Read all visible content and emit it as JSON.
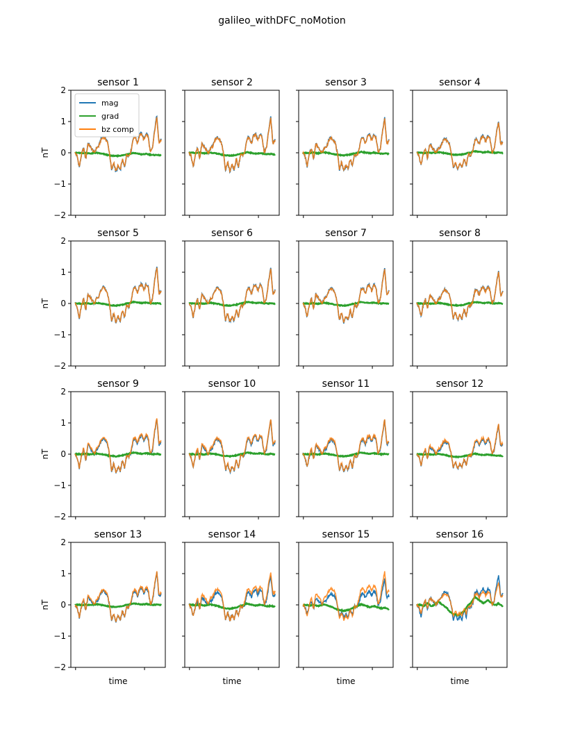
{
  "figure": {
    "title": "galileo_withDFC_noMotion"
  },
  "chart_data": {
    "type": "line",
    "layout": "4x4 grid of subplots, shared axes",
    "ylabel": "nT",
    "xlabel": "time",
    "ylim": [
      -2,
      2
    ],
    "yticks": [
      -2,
      -1,
      0,
      1,
      2
    ],
    "xtick_count": 2,
    "x_tick_labels_shown": false,
    "legend": {
      "placement": "upper-left of sensor 1",
      "entries": [
        "mag",
        "grad",
        "bz comp"
      ]
    },
    "colors": {
      "mag": "#1f77b4",
      "grad": "#2ca02c",
      "bz comp": "#ff7f0e"
    },
    "x": [
      0,
      0.025,
      0.05,
      0.075,
      0.1,
      0.125,
      0.15,
      0.175,
      0.2,
      0.225,
      0.25,
      0.275,
      0.3,
      0.325,
      0.35,
      0.375,
      0.4,
      0.425,
      0.45,
      0.475,
      0.5,
      0.525,
      0.55,
      0.575,
      0.6,
      0.625,
      0.65,
      0.675,
      0.7,
      0.725,
      0.75,
      0.775,
      0.8,
      0.825,
      0.85,
      0.875,
      0.9,
      0.925,
      0.95,
      0.975,
      1.0
    ],
    "base_signal": [
      0.0,
      -0.1,
      -0.45,
      -0.05,
      0.15,
      -0.2,
      0.3,
      0.2,
      0.1,
      0.0,
      0.15,
      0.2,
      0.4,
      0.5,
      0.45,
      0.35,
      0.0,
      -0.55,
      -0.3,
      -0.6,
      -0.4,
      -0.55,
      -0.2,
      -0.45,
      -0.05,
      -0.1,
      0.05,
      0.45,
      0.5,
      0.3,
      0.55,
      0.6,
      0.4,
      0.6,
      0.5,
      0.0,
      0.15,
      0.7,
      1.15,
      0.3,
      0.4
    ],
    "grad_base": [
      0.0,
      0.0,
      0.0,
      -0.01,
      0.0,
      0.01,
      0.0,
      -0.01,
      0.0,
      0.01,
      0.02,
      0.01,
      0.0,
      -0.01,
      -0.02,
      -0.04,
      -0.05,
      -0.06,
      -0.06,
      -0.07,
      -0.06,
      -0.05,
      -0.04,
      -0.02,
      0.0,
      0.01,
      0.03,
      0.05,
      0.04,
      0.03,
      0.02,
      0.01,
      0.02,
      0.03,
      0.02,
      0.01,
      0.0,
      0.0,
      0.01,
      0.0,
      -0.01
    ],
    "sensors": [
      {
        "title": "sensor 1",
        "mag_scale": 1.05,
        "bz_scale": 1.0,
        "bz_offset": 0.0,
        "grad_scale": 1.0,
        "grad_drift": -0.08
      },
      {
        "title": "sensor 2",
        "mag_scale": 1.0,
        "bz_scale": 0.97,
        "bz_offset": 0.0,
        "grad_scale": 1.0,
        "grad_drift": -0.05
      },
      {
        "title": "sensor 3",
        "mag_scale": 0.98,
        "bz_scale": 0.95,
        "bz_offset": 0.0,
        "grad_scale": 1.0,
        "grad_drift": -0.03
      },
      {
        "title": "sensor 4",
        "mag_scale": 0.9,
        "bz_scale": 0.87,
        "bz_offset": 0.0,
        "grad_scale": 1.0,
        "grad_drift": 0.0
      },
      {
        "title": "sensor 5",
        "mag_scale": 1.05,
        "bz_scale": 1.02,
        "bz_offset": 0.0,
        "grad_scale": 1.0,
        "grad_drift": 0.0
      },
      {
        "title": "sensor 6",
        "mag_scale": 1.02,
        "bz_scale": 0.99,
        "bz_offset": 0.0,
        "grad_scale": 1.0,
        "grad_drift": 0.0
      },
      {
        "title": "sensor 7",
        "mag_scale": 1.0,
        "bz_scale": 0.97,
        "bz_offset": 0.0,
        "grad_scale": 1.0,
        "grad_drift": 0.0
      },
      {
        "title": "sensor 8",
        "mag_scale": 0.9,
        "bz_scale": 0.88,
        "bz_offset": 0.0,
        "grad_scale": 1.0,
        "grad_drift": 0.0
      },
      {
        "title": "sensor 9",
        "mag_scale": 1.0,
        "bz_scale": 0.98,
        "bz_offset": 0.05,
        "grad_scale": 1.0,
        "grad_drift": 0.0
      },
      {
        "title": "sensor 10",
        "mag_scale": 0.97,
        "bz_scale": 0.94,
        "bz_offset": 0.05,
        "grad_scale": 1.0,
        "grad_drift": 0.0
      },
      {
        "title": "sensor 11",
        "mag_scale": 0.95,
        "bz_scale": 0.92,
        "bz_offset": 0.05,
        "grad_scale": 1.0,
        "grad_drift": 0.0
      },
      {
        "title": "sensor 12",
        "mag_scale": 0.8,
        "bz_scale": 0.78,
        "bz_offset": 0.05,
        "grad_scale": 1.0,
        "grad_drift": -0.05
      },
      {
        "title": "sensor 13",
        "mag_scale": 0.9,
        "bz_scale": 0.88,
        "bz_offset": 0.05,
        "grad_scale": 1.0,
        "grad_drift": 0.0
      },
      {
        "title": "sensor 14",
        "mag_scale": 0.82,
        "bz_scale": 0.82,
        "bz_offset": 0.1,
        "grad_scale": 1.5,
        "grad_drift": -0.05
      },
      {
        "title": "sensor 15",
        "mag_scale": 0.72,
        "bz_scale": 0.82,
        "bz_offset": 0.12,
        "grad_scale": 2.0,
        "grad_drift": -0.12
      },
      {
        "title": "sensor 16",
        "mag_scale": 0.85,
        "bz_scale": 0.6,
        "bz_offset": 0.05,
        "grad_scale": 5.0,
        "grad_drift": 0.0
      }
    ]
  }
}
